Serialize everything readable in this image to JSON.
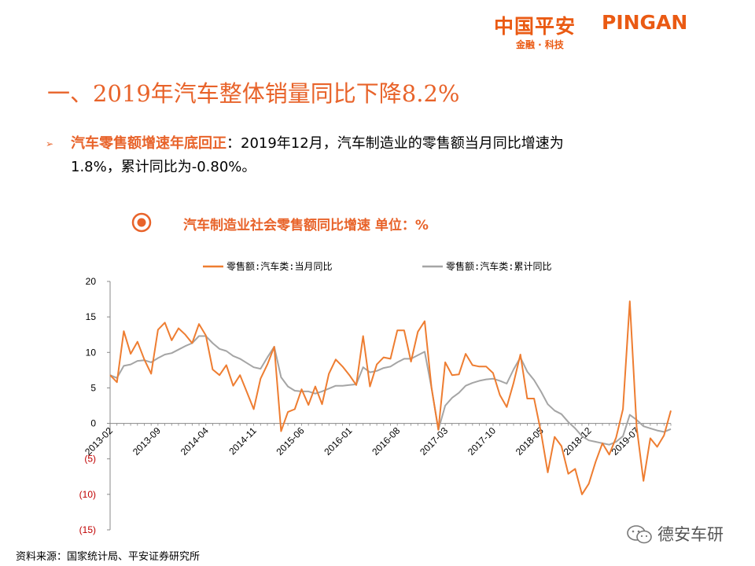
{
  "logo": {
    "name_cn": "中国平安",
    "name_en": "PINGAN",
    "tagline": "金融 · 科技"
  },
  "title": "一、2019年汽车整体销量同比下降8.2%",
  "bullet": {
    "head": "汽车零售额增速年底回正",
    "line1_text": "：2019年12月，汽车制造业的零售额当月同比增速为",
    "line2_text": "1.8%，累计同比为-0.80%。"
  },
  "chart_title": "汽车制造业社会零售额同比增速 单位：%",
  "source": "资料来源：国家统计局、平安证券研究所",
  "watermark": "德安车研",
  "colors": {
    "accent": "#e8632a",
    "monthly": "#ee7d31",
    "cumulative": "#a5a5a5",
    "negative_tick": "#c00000"
  },
  "chart_data": {
    "type": "line",
    "x": [
      "2013-02",
      "2013-03",
      "2013-04",
      "2013-05",
      "2013-06",
      "2013-07",
      "2013-08",
      "2013-09",
      "2013-10",
      "2013-11",
      "2013-12",
      "2014-01",
      "2014-02",
      "2014-03",
      "2014-04",
      "2014-05",
      "2014-06",
      "2014-07",
      "2014-08",
      "2014-09",
      "2014-10",
      "2014-11",
      "2014-12",
      "2015-01",
      "2015-02",
      "2015-03",
      "2015-04",
      "2015-05",
      "2015-06",
      "2015-07",
      "2015-08",
      "2015-09",
      "2015-10",
      "2015-11",
      "2015-12",
      "2016-01",
      "2016-02",
      "2016-03",
      "2016-04",
      "2016-05",
      "2016-06",
      "2016-07",
      "2016-08",
      "2016-09",
      "2016-10",
      "2016-11",
      "2016-12",
      "2017-01",
      "2017-02",
      "2017-03",
      "2017-04",
      "2017-05",
      "2017-06",
      "2017-07",
      "2017-08",
      "2017-09",
      "2017-10",
      "2017-11",
      "2017-12",
      "2018-01",
      "2018-02",
      "2018-03",
      "2018-04",
      "2018-05",
      "2018-06",
      "2018-07",
      "2018-08",
      "2018-09",
      "2018-10",
      "2018-11",
      "2018-12",
      "2019-01",
      "2019-02",
      "2019-03",
      "2019-04",
      "2019-05",
      "2019-06",
      "2019-07",
      "2019-08",
      "2019-09",
      "2019-10",
      "2019-11",
      "2019-12"
    ],
    "x_tick_labels": [
      "2013-02",
      "2013-09",
      "2014-04",
      "2014-11",
      "2015-06",
      "2016-01",
      "2016-08",
      "2017-03",
      "2017-10",
      "2018-05",
      "2018-12",
      "2019-07"
    ],
    "y_tick_labels": [
      "20",
      "15",
      "10",
      "5",
      "0",
      "(5)",
      "(10)",
      "(15)"
    ],
    "ylim": [
      -15,
      20
    ],
    "y_ticks": [
      20,
      15,
      10,
      5,
      0,
      -5,
      -10,
      -15
    ],
    "legend_position": "top",
    "grid": false,
    "series": [
      {
        "name": "零售额:汽车类:当月同比",
        "values": [
          6.8,
          5.8,
          13.0,
          9.8,
          11.5,
          9.0,
          7.0,
          13.2,
          14.2,
          11.7,
          13.4,
          12.5,
          11.3,
          14.0,
          12.4,
          7.6,
          6.8,
          8.2,
          5.3,
          6.8,
          4.4,
          2.0,
          6.3,
          8.3,
          10.8,
          -1.1,
          1.6,
          2.0,
          4.8,
          2.6,
          5.2,
          2.7,
          7.0,
          9.0,
          8.0,
          6.8,
          5.4,
          12.3,
          5.2,
          8.3,
          9.3,
          9.1,
          13.1,
          13.1,
          8.7,
          12.9,
          14.4,
          5.0,
          -0.9,
          8.6,
          6.8,
          6.9,
          9.8,
          8.2,
          8.0,
          8.0,
          7.1,
          4.0,
          2.3,
          5.7,
          9.7,
          3.5,
          3.5,
          -1.2,
          -6.9,
          -1.9,
          -3.2,
          -7.1,
          -6.4,
          -10.0,
          -8.5,
          -5.4,
          -2.8,
          -4.4,
          -2.0,
          2.0,
          17.2,
          -0.5,
          -8.1,
          -2.1,
          -3.3,
          -1.7,
          1.8
        ]
      },
      {
        "name": "零售额:汽车类:累计同比",
        "values": [
          6.8,
          6.4,
          8.1,
          8.3,
          8.8,
          8.9,
          8.6,
          9.2,
          9.7,
          9.9,
          10.4,
          10.9,
          11.3,
          12.3,
          12.3,
          11.3,
          10.5,
          10.2,
          9.5,
          9.1,
          8.5,
          7.9,
          7.7,
          9.3,
          10.8,
          6.5,
          5.2,
          4.6,
          4.5,
          4.5,
          4.2,
          4.5,
          4.9,
          5.3,
          5.3,
          5.4,
          5.5,
          7.9,
          7.2,
          7.4,
          7.8,
          8.0,
          8.6,
          9.1,
          9.1,
          9.6,
          10.1,
          5.0,
          -0.9,
          2.5,
          3.6,
          4.3,
          5.3,
          5.7,
          6.0,
          6.2,
          6.3,
          6.0,
          5.6,
          7.6,
          9.3,
          7.3,
          6.1,
          4.5,
          2.7,
          1.8,
          1.3,
          0.2,
          -0.7,
          -1.8,
          -2.4,
          -2.6,
          -2.8,
          -3.0,
          -2.6,
          -1.8,
          1.2,
          0.5,
          -0.4,
          -0.7,
          -1.0,
          -1.2,
          -0.8
        ]
      }
    ]
  }
}
